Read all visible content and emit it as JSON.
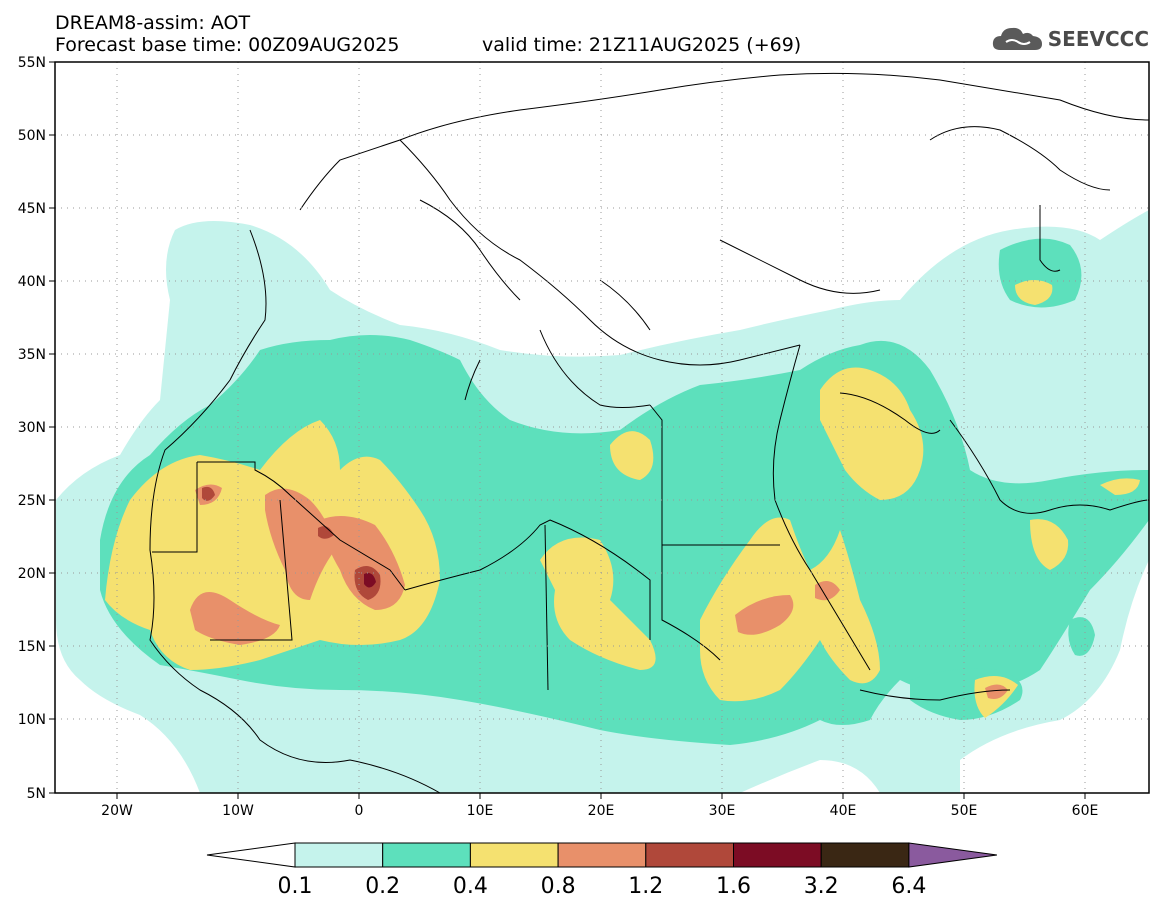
{
  "header": {
    "model_line": "DREAM8-assim: AOT",
    "base_time_line": "Forecast base time: 00Z09AUG2025",
    "valid_time_line": "valid time: 21Z11AUG2025 (+69)"
  },
  "logo": {
    "text": "SEEVCCC",
    "icon": "cloud-icon"
  },
  "map": {
    "lat_labels": [
      "55N",
      "50N",
      "45N",
      "40N",
      "35N",
      "30N",
      "25N",
      "20N",
      "15N",
      "10N",
      "5N"
    ],
    "lon_labels": [
      "20W",
      "10W",
      "0",
      "10E",
      "20E",
      "30E",
      "40E",
      "50E",
      "60E"
    ]
  },
  "legend": {
    "labels": [
      "0.1",
      "0.2",
      "0.4",
      "0.8",
      "1.2",
      "1.6",
      "3.2",
      "6.4"
    ],
    "colors": [
      "#ffffff",
      "#c5f3ec",
      "#5de0bc",
      "#f5e170",
      "#e8906a",
      "#b0483a",
      "#7c0c24",
      "#3a2714",
      "#8a5a9e"
    ]
  }
}
